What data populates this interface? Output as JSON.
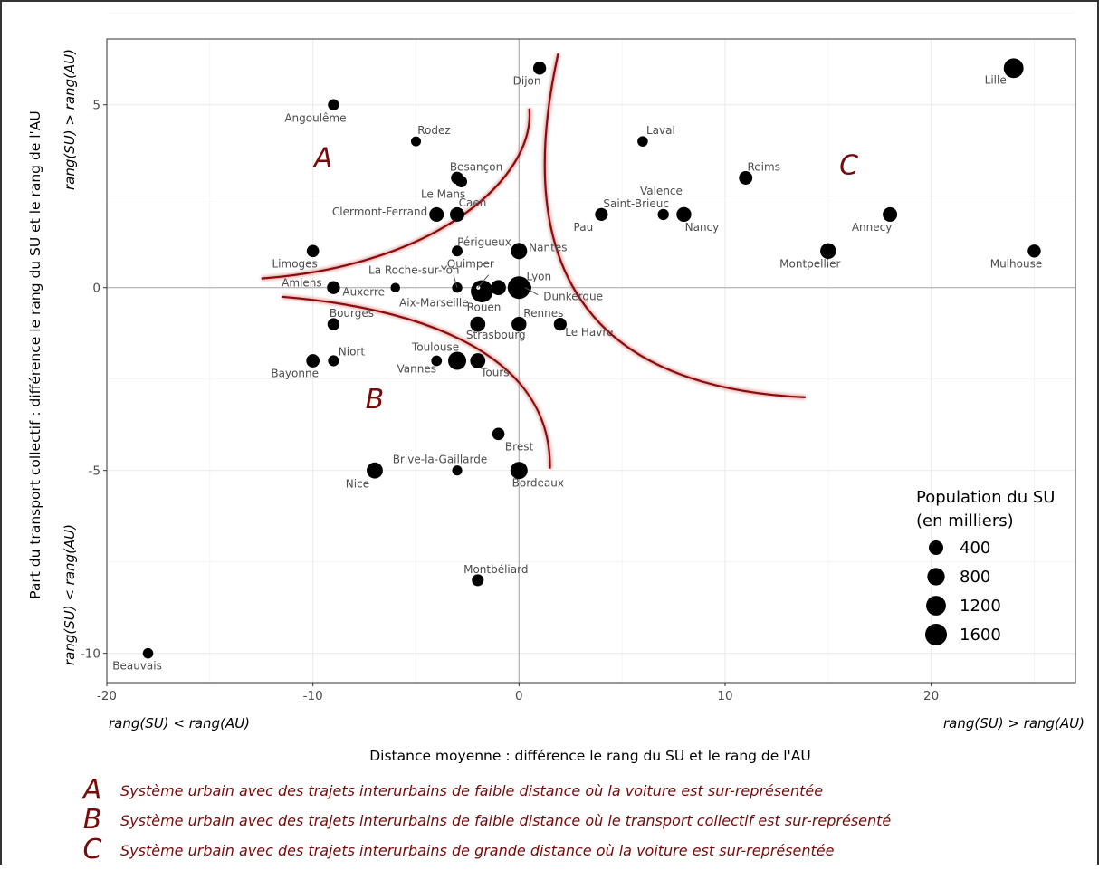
{
  "chart_data": {
    "type": "scatter",
    "xlabel": "Distance moyenne : différence le rang du SU et le rang de l'AU",
    "ylabel": "Part du transport collectif : différence le rang du SU et le rang de l'AU",
    "x_extreme_left": "rang(SU) < rang(AU)",
    "x_extreme_right": "rang(SU) > rang(AU)",
    "y_extreme_top": "rang(SU) > rang(AU)",
    "y_extreme_bottom": "rang(SU) < rang(AU)",
    "xlim": [
      -20,
      27
    ],
    "ylim": [
      -10.8,
      6.8
    ],
    "xticks": [
      -20,
      -10,
      0,
      10,
      20
    ],
    "xtick_labels": [
      "-20",
      "-10",
      "0",
      "10",
      "20"
    ],
    "yticks": [
      -10,
      -5,
      0,
      5
    ],
    "ytick_labels": [
      "-10",
      "-5",
      "0",
      "5"
    ],
    "grid": true,
    "legend": {
      "title_line1": "Population du SU",
      "title_line2": "(en milliers)",
      "placement": "bottom-right",
      "entries": [
        {
          "label": "400",
          "value": 400
        },
        {
          "label": "800",
          "value": 800
        },
        {
          "label": "1200",
          "value": 1200
        },
        {
          "label": "1600",
          "value": 1600
        }
      ]
    },
    "points": [
      {
        "name": "Lille",
        "x": 24,
        "y": 6,
        "pop": 1200
      },
      {
        "name": "Dijon",
        "x": 1,
        "y": 6,
        "pop": 250
      },
      {
        "name": "Angoulême",
        "x": -9,
        "y": 5,
        "pop": 120
      },
      {
        "name": "Rodez",
        "x": -5,
        "y": 4,
        "pop": 60
      },
      {
        "name": "Laval",
        "x": 6,
        "y": 4,
        "pop": 80
      },
      {
        "name": "Besançon",
        "x": -3,
        "y": 3,
        "pop": 200
      },
      {
        "name": "Le Mans",
        "x": -2.8,
        "y": 2.9,
        "pop": 150
      },
      {
        "name": "Reims",
        "x": 11,
        "y": 3,
        "pop": 300
      },
      {
        "name": "Clermont-Ferrand",
        "x": -4,
        "y": 2,
        "pop": 400
      },
      {
        "name": "Caen",
        "x": -3,
        "y": 2,
        "pop": 400
      },
      {
        "name": "Saint-Brieuc",
        "x": 7,
        "y": 2,
        "pop": 120
      },
      {
        "name": "Pau",
        "x": 4,
        "y": 2,
        "pop": 240
      },
      {
        "name": "Valence",
        "x": 8,
        "y": 2,
        "pop": 400
      },
      {
        "name": "Nancy",
        "x": 8,
        "y": 2,
        "pop": 430
      },
      {
        "name": "Annecy",
        "x": 18,
        "y": 2,
        "pop": 400
      },
      {
        "name": "Périgueux",
        "x": -3,
        "y": 1,
        "pop": 100
      },
      {
        "name": "Nantes",
        "x": 0,
        "y": 1,
        "pop": 620
      },
      {
        "name": "Limoges",
        "x": -10,
        "y": 1,
        "pop": 200
      },
      {
        "name": "Montpellier",
        "x": 15,
        "y": 1,
        "pop": 560
      },
      {
        "name": "Mulhouse",
        "x": 25,
        "y": 1,
        "pop": 260
      },
      {
        "name": "Amiens",
        "x": -9,
        "y": 0,
        "pop": 250
      },
      {
        "name": "Auxerre",
        "x": -6,
        "y": 0,
        "pop": 40
      },
      {
        "name": "La Roche-sur-Yon",
        "x": -3,
        "y": 0,
        "pop": 70
      },
      {
        "name": "Quimper",
        "x": -2,
        "y": 0,
        "pop": 80
      },
      {
        "name": "Aix-Marseille",
        "x": -1.8,
        "y": -0.1,
        "pop": 1700
      },
      {
        "name": "Rouen",
        "x": -1,
        "y": 0,
        "pop": 470
      },
      {
        "name": "Lyon",
        "x": 0,
        "y": 0,
        "pop": 1800
      },
      {
        "name": "Dunkerque",
        "x": 0.3,
        "y": 0,
        "pop": 200
      },
      {
        "name": "Bourges",
        "x": -9,
        "y": -1,
        "pop": 180
      },
      {
        "name": "Strasbourg",
        "x": -2,
        "y": -1,
        "pop": 480
      },
      {
        "name": "Rennes",
        "x": 0,
        "y": -1,
        "pop": 440
      },
      {
        "name": "Le Havre",
        "x": 2,
        "y": -1,
        "pop": 240
      },
      {
        "name": "Bayonne",
        "x": -10,
        "y": -2,
        "pop": 280
      },
      {
        "name": "Niort",
        "x": -9,
        "y": -2,
        "pop": 110
      },
      {
        "name": "Toulouse",
        "x": -3,
        "y": -2,
        "pop": 900
      },
      {
        "name": "Vannes",
        "x": -4,
        "y": -2,
        "pop": 90
      },
      {
        "name": "Tours",
        "x": -2,
        "y": -2,
        "pop": 480
      },
      {
        "name": "Brest",
        "x": -1,
        "y": -4,
        "pop": 200
      },
      {
        "name": "Brive-la-Gaillarde",
        "x": -3,
        "y": -5,
        "pop": 60
      },
      {
        "name": "Nice",
        "x": -7,
        "y": -5,
        "pop": 600
      },
      {
        "name": "Bordeaux",
        "x": 0,
        "y": -5,
        "pop": 750
      },
      {
        "name": "Montbéliard",
        "x": -2,
        "y": -8,
        "pop": 160
      },
      {
        "name": "Beauvais",
        "x": -18,
        "y": -10,
        "pop": 80
      }
    ],
    "zones": [
      {
        "letter": "A",
        "x": -9.5,
        "y": 3.3
      },
      {
        "letter": "B",
        "x": -7,
        "y": -3.3
      },
      {
        "letter": "C",
        "x": 16,
        "y": 3.1
      }
    ]
  },
  "notes": [
    {
      "letter": "A",
      "text": "Système urbain avec des trajets interurbains de faible distance où la voiture est sur-représentée"
    },
    {
      "letter": "B",
      "text": "Système urbain avec des trajets interurbains de faible distance où le transport collectif est sur-représenté"
    },
    {
      "letter": "C",
      "text": "Système urbain avec des trajets interurbains de grande distance où la voiture est sur-représentée"
    }
  ],
  "colors": {
    "points": "#000000",
    "zone_curves": "#8b0a0a",
    "zone_text": "#7a0a0a",
    "grid": "#ebebeb",
    "panel_border": "#333333"
  }
}
